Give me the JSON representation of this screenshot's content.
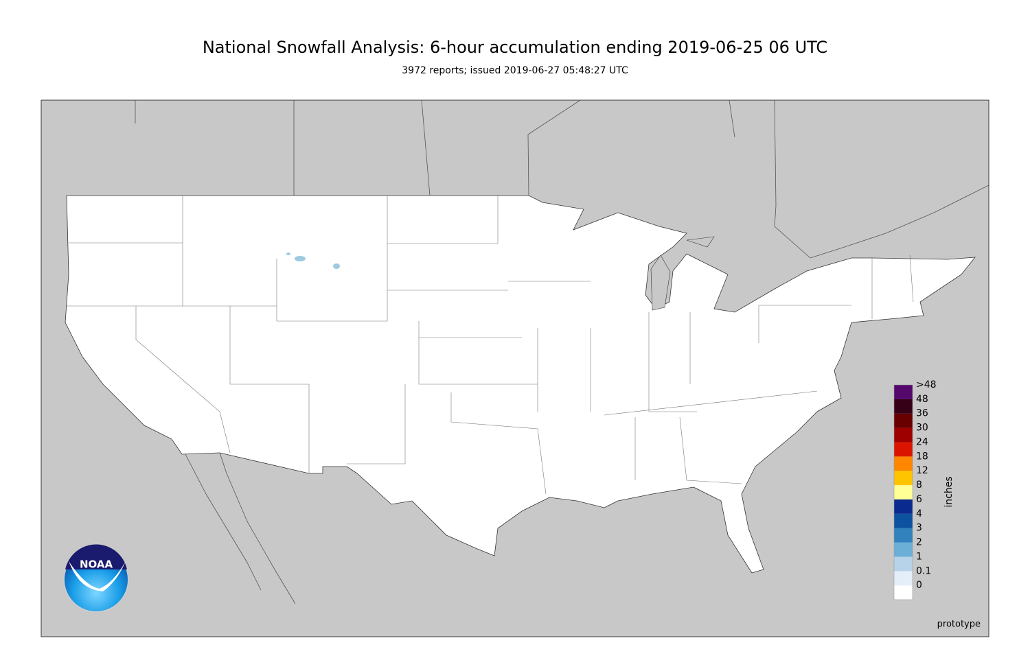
{
  "header": {
    "title": "National Snowfall Analysis: 6-hour accumulation ending 2019-06-25 06 UTC",
    "subtitle": "3972 reports; issued 2019-06-27 05:48:27 UTC"
  },
  "colorbar": {
    "title": "inches",
    "items": [
      {
        "label": "0",
        "color": "#ffffff"
      },
      {
        "label": "0.1",
        "color": "#e4eef9"
      },
      {
        "label": "1",
        "color": "#b6d3ea"
      },
      {
        "label": "2",
        "color": "#6baed6"
      },
      {
        "label": "3",
        "color": "#3182bd"
      },
      {
        "label": "4",
        "color": "#0d52a0"
      },
      {
        "label": "6",
        "color": "#0a2a8f"
      },
      {
        "label": "8",
        "color": "#ffff96"
      },
      {
        "label": "12",
        "color": "#ffc400"
      },
      {
        "label": "18",
        "color": "#ff8700"
      },
      {
        "label": "24",
        "color": "#db1400"
      },
      {
        "label": "30",
        "color": "#9e0000"
      },
      {
        "label": "36",
        "color": "#690000"
      },
      {
        "label": "48",
        "color": "#360016"
      },
      {
        "label": ">48",
        "color": "#54086b"
      }
    ]
  },
  "footer": {
    "note": "prototype"
  },
  "logo": {
    "text": "NOAA"
  }
}
